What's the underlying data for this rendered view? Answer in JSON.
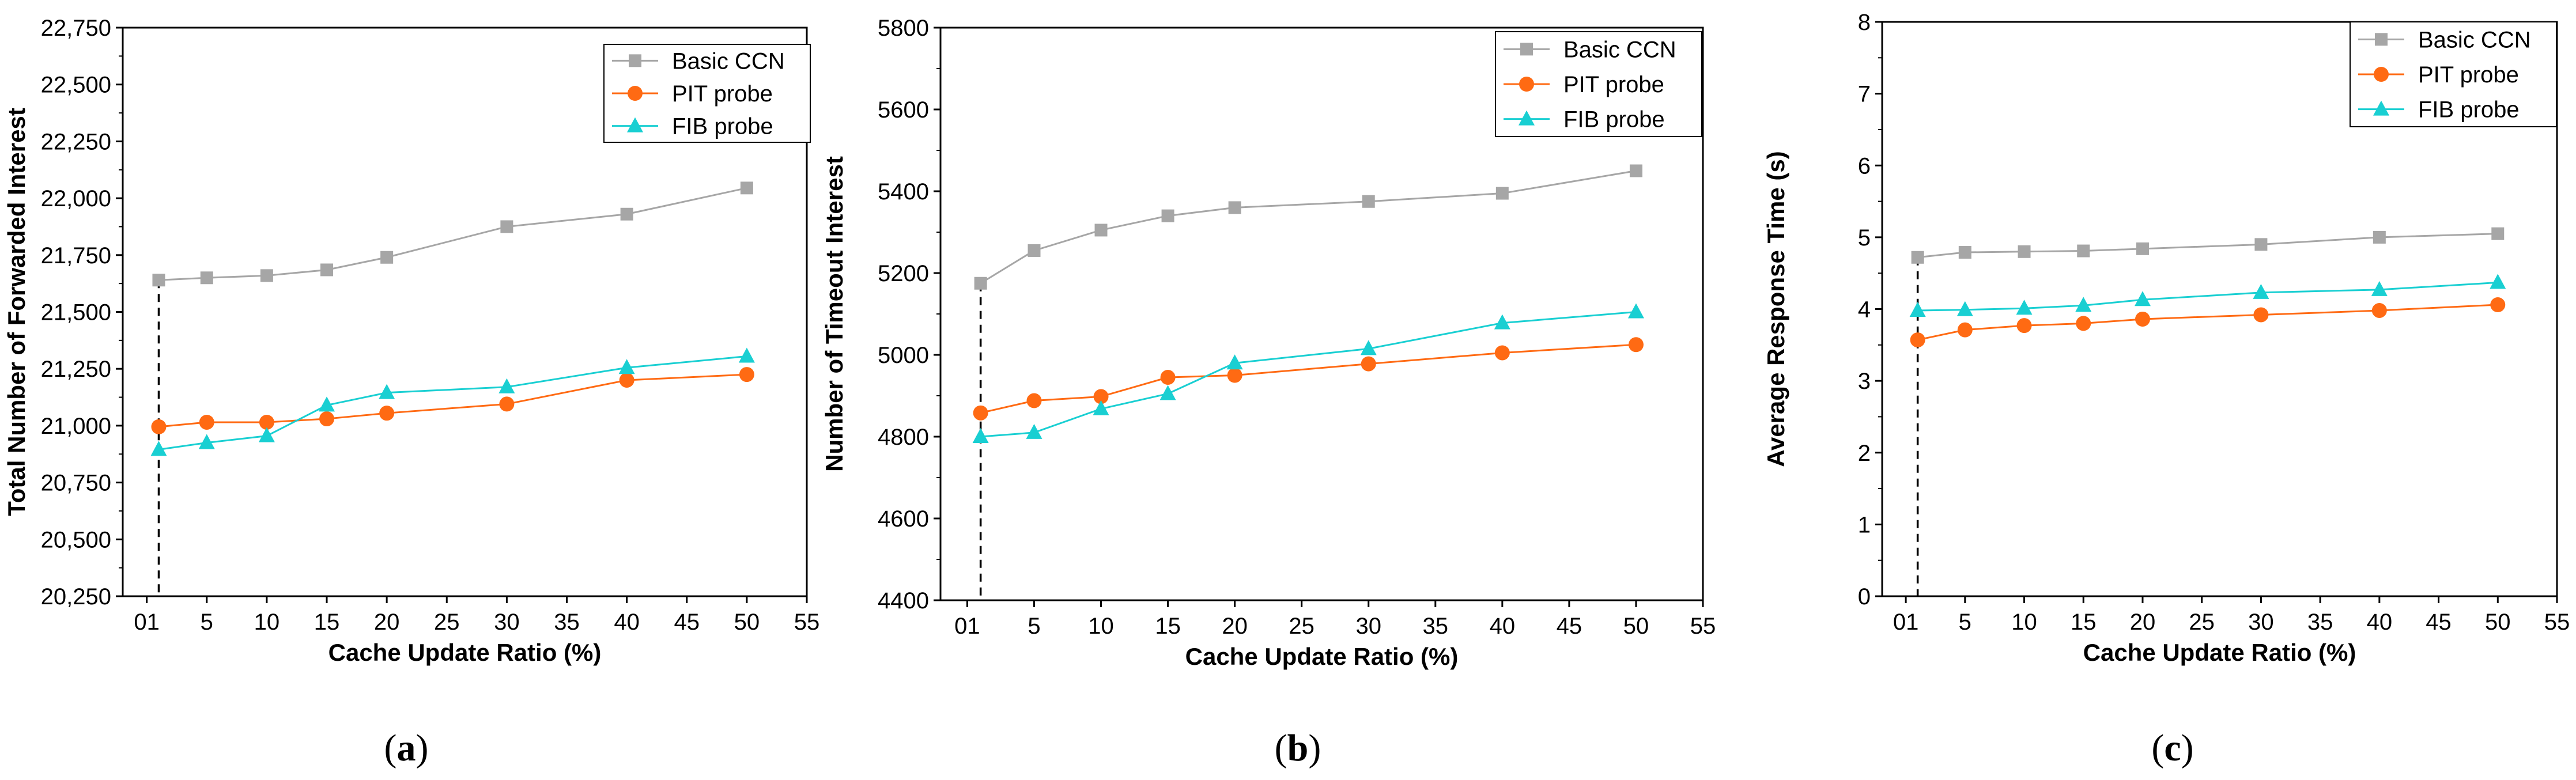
{
  "colors": {
    "Basic CCN": "#a6a6a6",
    "PIT probe": "#ff6a13",
    "FIB probe": "#19cfd2",
    "axis": "#000000"
  },
  "chart_data": [
    {
      "type": "line",
      "caption": "(a)",
      "caption_letter": "a",
      "xlabel": "Cache Update Ratio (%)",
      "ylabel": "Total Number of Forwarded Interest",
      "xlim": [
        -2,
        55
      ],
      "ylim": [
        20250,
        22750
      ],
      "xticks": [
        0,
        5,
        10,
        15,
        20,
        25,
        30,
        35,
        40,
        45,
        50,
        55
      ],
      "xtick_labels": [
        "01",
        "5",
        "10",
        "15",
        "20",
        "25",
        "30",
        "35",
        "40",
        "45",
        "50",
        "55"
      ],
      "yticks": [
        20250,
        20500,
        20750,
        21000,
        21250,
        21500,
        21750,
        22000,
        22250,
        22500,
        22750
      ],
      "ytick_labels": [
        "20,250",
        "20,500",
        "20,750",
        "21,000",
        "21,250",
        "21,500",
        "21,750",
        "22,000",
        "22,250",
        "22,500",
        "22,750"
      ],
      "x": [
        1,
        5,
        10,
        15,
        20,
        30,
        40,
        50
      ],
      "series": [
        {
          "name": "Basic CCN",
          "marker": "square",
          "values": [
            21640,
            21650,
            21660,
            21685,
            21740,
            21875,
            21930,
            22045
          ]
        },
        {
          "name": "PIT probe",
          "marker": "circle",
          "values": [
            20995,
            21015,
            21015,
            21030,
            21055,
            21095,
            21200,
            21225
          ]
        },
        {
          "name": "FIB probe",
          "marker": "triangle",
          "values": [
            20895,
            20925,
            20955,
            21090,
            21145,
            21170,
            21255,
            21305
          ]
        }
      ],
      "reference_line": {
        "x": 1,
        "style": "dashed"
      },
      "legend": "top-right"
    },
    {
      "type": "line",
      "caption": "(b)",
      "caption_letter": "b",
      "xlabel": "Cache Update Ratio (%)",
      "ylabel": "Number of Timeout Interest",
      "xlim": [
        -2,
        55
      ],
      "ylim": [
        4400,
        5800
      ],
      "xticks": [
        0,
        5,
        10,
        15,
        20,
        25,
        30,
        35,
        40,
        45,
        50,
        55
      ],
      "xtick_labels": [
        "01",
        "5",
        "10",
        "15",
        "20",
        "25",
        "30",
        "35",
        "40",
        "45",
        "50",
        "55"
      ],
      "yticks": [
        4400,
        4600,
        4800,
        5000,
        5200,
        5400,
        5600,
        5800
      ],
      "ytick_labels": [
        "4400",
        "4600",
        "4800",
        "5000",
        "5200",
        "5400",
        "5600",
        "5800"
      ],
      "x": [
        1,
        5,
        10,
        15,
        20,
        30,
        40,
        50
      ],
      "series": [
        {
          "name": "Basic CCN",
          "marker": "square",
          "values": [
            5175,
            5255,
            5305,
            5340,
            5360,
            5375,
            5395,
            5450
          ]
        },
        {
          "name": "PIT probe",
          "marker": "circle",
          "values": [
            4858,
            4888,
            4898,
            4945,
            4950,
            4978,
            5005,
            5025
          ]
        },
        {
          "name": "FIB probe",
          "marker": "triangle",
          "values": [
            4800,
            4810,
            4868,
            4905,
            4980,
            5015,
            5078,
            5105
          ]
        }
      ],
      "reference_line": {
        "x": 1,
        "style": "dashed"
      },
      "legend": "top-right"
    },
    {
      "type": "line",
      "caption": "(c)",
      "caption_letter": "c",
      "xlabel": "Cache Update Ratio (%)",
      "ylabel": "Average Response Time (s)",
      "xlim": [
        -2,
        55
      ],
      "ylim": [
        0,
        8
      ],
      "xticks": [
        0,
        5,
        10,
        15,
        20,
        25,
        30,
        35,
        40,
        45,
        50,
        55
      ],
      "xtick_labels": [
        "01",
        "5",
        "10",
        "15",
        "20",
        "25",
        "30",
        "35",
        "40",
        "45",
        "50",
        "55"
      ],
      "yticks": [
        0,
        1,
        2,
        3,
        4,
        5,
        6,
        7,
        8
      ],
      "ytick_labels": [
        "0",
        "1",
        "2",
        "3",
        "4",
        "5",
        "6",
        "7",
        "8"
      ],
      "x": [
        1,
        5,
        10,
        15,
        20,
        30,
        40,
        50
      ],
      "series": [
        {
          "name": "Basic CCN",
          "marker": "square",
          "values": [
            4.72,
            4.79,
            4.8,
            4.81,
            4.84,
            4.9,
            5.0,
            5.05
          ]
        },
        {
          "name": "PIT probe",
          "marker": "circle",
          "values": [
            3.57,
            3.71,
            3.77,
            3.8,
            3.86,
            3.92,
            3.98,
            4.06
          ]
        },
        {
          "name": "FIB probe",
          "marker": "triangle",
          "values": [
            3.98,
            3.99,
            4.01,
            4.05,
            4.13,
            4.23,
            4.27,
            4.37
          ]
        }
      ],
      "reference_line": {
        "x": 1,
        "style": "dashed"
      },
      "legend": "top-right"
    }
  ]
}
